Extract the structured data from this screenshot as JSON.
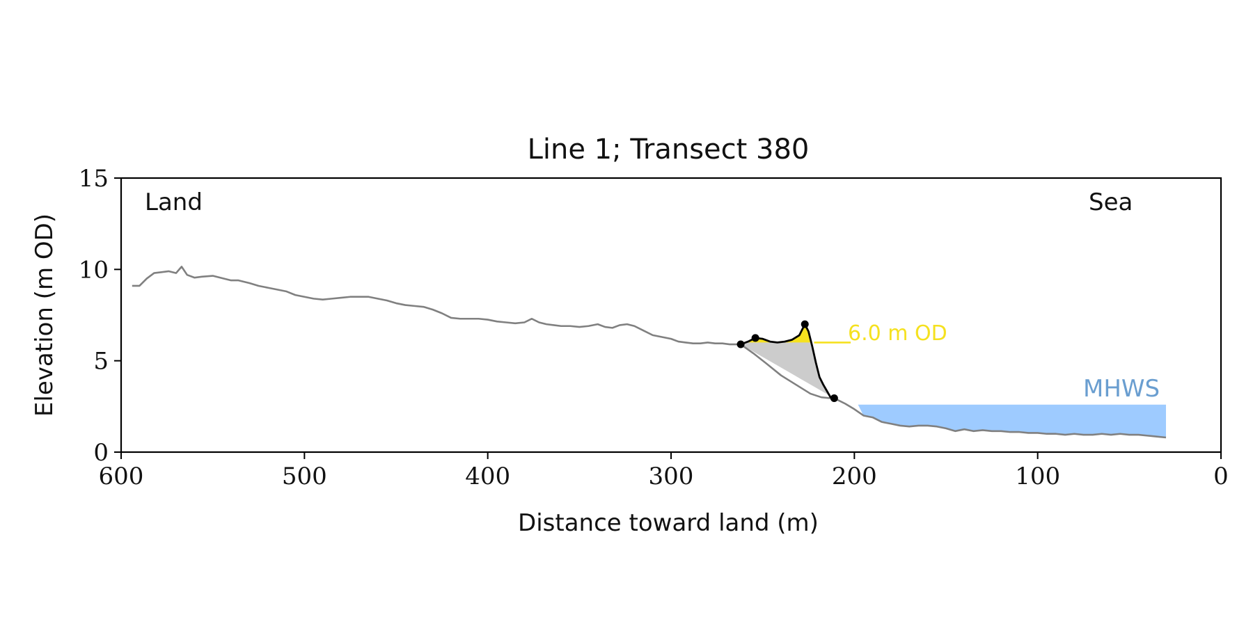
{
  "chart_data": {
    "type": "line",
    "title": "Line 1; Transect 380",
    "xlabel": "Distance toward land (m)",
    "ylabel": "Elevation (m OD)",
    "xlim": [
      600,
      0
    ],
    "ylim": [
      0,
      15
    ],
    "x_ticks": [
      600,
      500,
      400,
      300,
      200,
      100,
      0
    ],
    "y_ticks": [
      0,
      5,
      10,
      15
    ],
    "grid": false,
    "annotations": {
      "land": "Land",
      "sea": "Sea",
      "od_level_label": "6.0 m OD",
      "mhws_label": "MHWS"
    },
    "colors": {
      "profile": "#808080",
      "feature": "#000000",
      "od_fill": "#f5e11f",
      "volume_fill": "#cccccc",
      "mhws_fill": "#9ecbff",
      "mhws_text": "#6a9ed0",
      "od_text": "#f5e11f"
    },
    "od_level": 6.0,
    "mhws_level": 2.6,
    "mhws_x_range": [
      198,
      30
    ],
    "series": [
      {
        "name": "profile",
        "x": [
          594,
          590,
          586,
          582,
          578,
          574,
          570,
          567,
          564,
          560,
          556,
          550,
          544,
          540,
          536,
          530,
          525,
          520,
          515,
          510,
          505,
          500,
          495,
          490,
          485,
          480,
          475,
          470,
          465,
          460,
          455,
          450,
          445,
          440,
          435,
          430,
          425,
          420,
          415,
          410,
          405,
          400,
          395,
          390,
          385,
          380,
          376,
          372,
          368,
          364,
          360,
          355,
          350,
          345,
          340,
          336,
          332,
          328,
          324,
          320,
          315,
          310,
          305,
          300,
          296,
          292,
          288,
          284,
          280,
          276,
          272,
          268,
          264,
          262,
          255,
          248,
          240,
          232,
          224,
          218,
          213,
          210,
          205,
          200,
          195,
          190,
          185,
          180,
          175,
          170,
          165,
          160,
          155,
          150,
          145,
          140,
          135,
          130,
          125,
          120,
          115,
          110,
          105,
          100,
          95,
          90,
          85,
          80,
          75,
          70,
          65,
          60,
          55,
          50,
          45,
          40,
          35,
          30
        ],
        "y": [
          9.1,
          9.1,
          9.5,
          9.8,
          9.85,
          9.9,
          9.8,
          10.15,
          9.7,
          9.55,
          9.6,
          9.65,
          9.5,
          9.4,
          9.4,
          9.25,
          9.1,
          9.0,
          8.9,
          8.8,
          8.6,
          8.5,
          8.4,
          8.35,
          8.4,
          8.45,
          8.5,
          8.5,
          8.5,
          8.4,
          8.3,
          8.15,
          8.05,
          8.0,
          7.95,
          7.8,
          7.6,
          7.35,
          7.3,
          7.3,
          7.3,
          7.25,
          7.15,
          7.1,
          7.05,
          7.1,
          7.3,
          7.1,
          7.0,
          6.95,
          6.9,
          6.9,
          6.85,
          6.9,
          7.0,
          6.85,
          6.8,
          6.95,
          7.0,
          6.9,
          6.65,
          6.4,
          6.3,
          6.2,
          6.05,
          6.0,
          5.95,
          5.95,
          6.0,
          5.95,
          5.95,
          5.9,
          5.9,
          5.9,
          5.4,
          4.85,
          4.2,
          3.7,
          3.2,
          3.0,
          2.95,
          2.9,
          2.65,
          2.35,
          2.0,
          1.9,
          1.65,
          1.55,
          1.45,
          1.4,
          1.45,
          1.45,
          1.4,
          1.3,
          1.15,
          1.25,
          1.15,
          1.2,
          1.15,
          1.15,
          1.1,
          1.1,
          1.05,
          1.05,
          1.0,
          1.0,
          0.95,
          1.0,
          0.95,
          0.95,
          1.0,
          0.95,
          1.0,
          0.95,
          0.95,
          0.9,
          0.85,
          0.8
        ]
      },
      {
        "name": "feature",
        "x": [
          262,
          258,
          254,
          250,
          246,
          242,
          238,
          234,
          230,
          227,
          225,
          223,
          221,
          219,
          217,
          215,
          213,
          211
        ],
        "y": [
          5.9,
          6.05,
          6.25,
          6.2,
          6.05,
          6.0,
          6.05,
          6.15,
          6.4,
          7.0,
          6.6,
          5.8,
          4.9,
          4.1,
          3.7,
          3.35,
          3.0,
          2.95
        ]
      }
    ],
    "markers": [
      {
        "x": 262,
        "y": 5.9
      },
      {
        "x": 254,
        "y": 6.25
      },
      {
        "x": 227,
        "y": 7.0
      },
      {
        "x": 211,
        "y": 2.95
      }
    ],
    "od_line_x_range": [
      222,
      202
    ]
  }
}
